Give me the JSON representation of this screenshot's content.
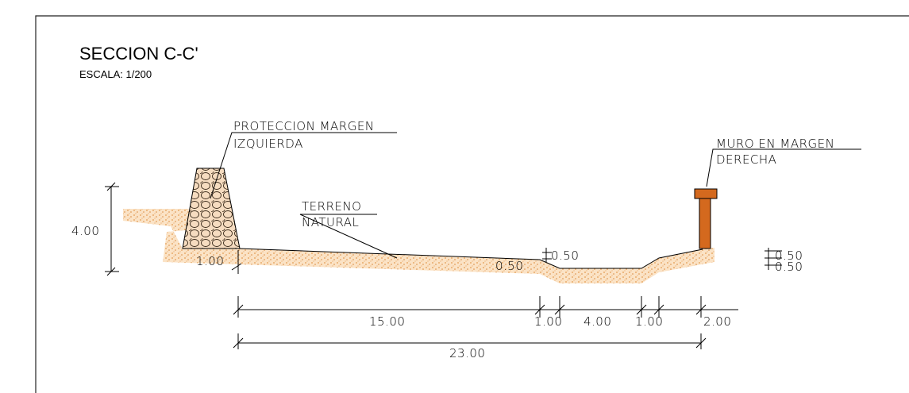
{
  "header": {
    "title": "SECCION C-C'",
    "scale": "ESCALA: 1/200"
  },
  "labels": {
    "left_wall": [
      "PROTECCION  MARGEN",
      "IZQUIERDA"
    ],
    "terrain": [
      "TERRENO",
      "NATURAL"
    ],
    "right_wall": [
      "MURO  EN  MARGEN",
      "DERECHA"
    ]
  },
  "dimensions": {
    "height_left": "4.00",
    "wall_base": "1.00",
    "step_left": "0.50",
    "step_right": "0.50",
    "right_a": "0.50",
    "right_b": "0.50",
    "span_1": "15.00",
    "span_2": "1.00",
    "span_3": "4.00",
    "span_4": "1.00",
    "span_5": "2.00",
    "total": "23.00"
  }
}
